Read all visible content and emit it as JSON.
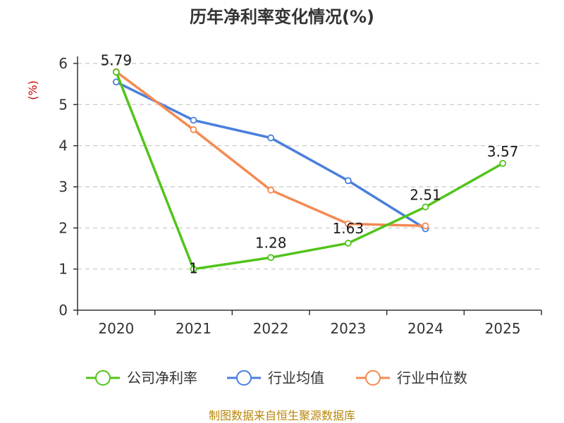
{
  "chart_data": {
    "type": "line",
    "title": "历年净利率变化情况(%)",
    "ylabel": "(%)",
    "xlabel": "",
    "categories": [
      "2020",
      "2021",
      "2022",
      "2023",
      "2024",
      "2025"
    ],
    "ylim": [
      0,
      6
    ],
    "yticks": [
      0,
      1,
      2,
      3,
      4,
      5,
      6
    ],
    "grid": true,
    "legend": "bottom",
    "series": [
      {
        "name": "公司净利率",
        "color": "#52c41a",
        "values": [
          5.79,
          1,
          1.28,
          1.63,
          2.51,
          3.57
        ],
        "labels": [
          "5.79",
          "1",
          "1.28",
          "1.63",
          "2.51",
          "3.57"
        ]
      },
      {
        "name": "行业均值",
        "color": "#4a7fdc",
        "values": [
          5.55,
          4.62,
          4.19,
          3.15,
          1.98,
          null
        ],
        "labels": null
      },
      {
        "name": "行业中位数",
        "color": "#f48a52",
        "values": [
          5.8,
          4.39,
          2.92,
          2.1,
          2.05,
          null
        ],
        "labels": null
      }
    ]
  },
  "source": "制图数据来自恒生聚源数据库"
}
